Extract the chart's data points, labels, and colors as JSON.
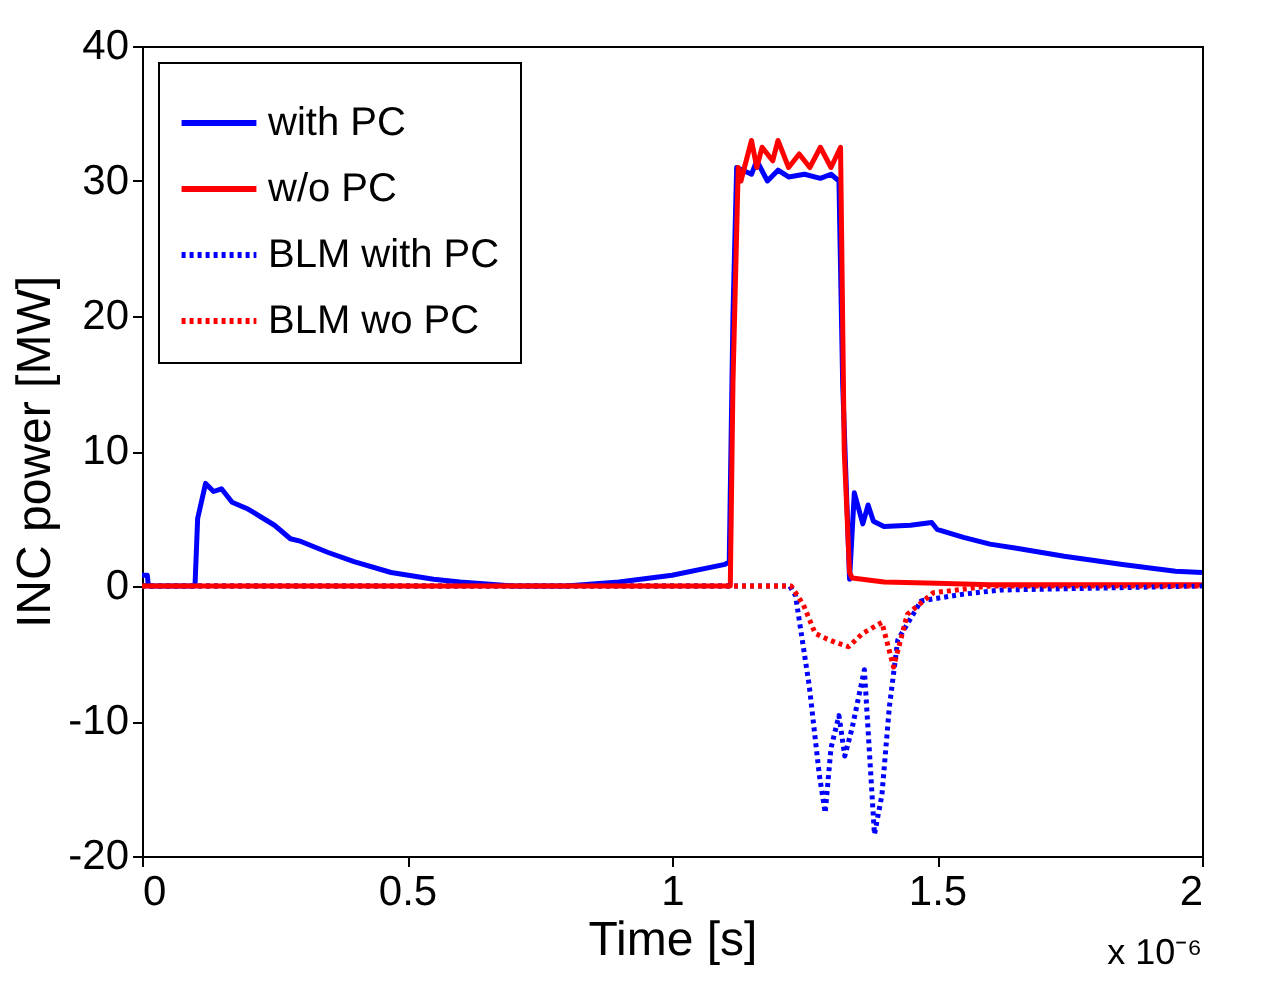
{
  "chart_data": {
    "type": "line",
    "xlabel": "Time [s]",
    "ylabel": "INC power [MW]",
    "xlim": [
      0,
      2
    ],
    "xticks": [
      0,
      0.5,
      1,
      1.5,
      2
    ],
    "ylim": [
      -20,
      40
    ],
    "yticks": [
      -20,
      -10,
      0,
      10,
      20,
      30,
      40
    ],
    "grid": false,
    "legend": "top left",
    "marker": "none",
    "annotations": [
      "x 10⁻⁶"
    ],
    "series": [
      {
        "name": "with PC",
        "color": "#0000ff",
        "line_style": "solid",
        "x": [
          0,
          0.01,
          0.012,
          0.1,
          0.105,
          0.12,
          0.135,
          0.15,
          0.17,
          0.2,
          0.25,
          0.28,
          0.3,
          0.35,
          0.4,
          0.47,
          0.55,
          0.6,
          0.7,
          0.8,
          0.9,
          1.0,
          1.1,
          1.108,
          1.115,
          1.122,
          1.15,
          1.16,
          1.18,
          1.2,
          1.22,
          1.25,
          1.28,
          1.3,
          1.315,
          1.322,
          1.335,
          1.344,
          1.36,
          1.37,
          1.38,
          1.4,
          1.45,
          1.49,
          1.5,
          1.55,
          1.6,
          1.65,
          1.74,
          1.85,
          1.95,
          2.0
        ],
        "values": [
          0.8,
          0.8,
          0,
          0,
          5,
          7.6,
          7,
          7.2,
          6.2,
          5.7,
          4.5,
          3.5,
          3.3,
          2.5,
          1.8,
          1,
          0.5,
          0.3,
          0,
          0,
          0.3,
          0.8,
          1.6,
          1.8,
          20,
          31,
          30.5,
          31.5,
          30,
          30.8,
          30.3,
          30.5,
          30.2,
          30.5,
          30,
          15,
          0.5,
          6.9,
          4.6,
          6,
          4.8,
          4.4,
          4.5,
          4.7,
          4.2,
          3.6,
          3.1,
          2.8,
          2.2,
          1.6,
          1.1,
          1.0
        ]
      },
      {
        "name": "w/o PC",
        "color": "#ff0000",
        "line_style": "solid",
        "x": [
          0,
          0.5,
          1.0,
          1.11,
          1.115,
          1.125,
          1.13,
          1.15,
          1.16,
          1.17,
          1.19,
          1.2,
          1.22,
          1.24,
          1.26,
          1.28,
          1.3,
          1.318,
          1.325,
          1.335,
          1.34,
          1.4,
          1.5,
          1.6,
          2.0
        ],
        "values": [
          0,
          0,
          0,
          0,
          15,
          31,
          30,
          33,
          31,
          32.5,
          31.5,
          33,
          31,
          32,
          31,
          32.5,
          31,
          32.5,
          10,
          1,
          0.6,
          0.3,
          0.2,
          0.1,
          0.1
        ]
      },
      {
        "name": "BLM with PC",
        "color": "#0000ff",
        "line_style": "dotted",
        "x": [
          0,
          0.5,
          1.0,
          1.222,
          1.233,
          1.259,
          1.278,
          1.289,
          1.3,
          1.315,
          1.326,
          1.34,
          1.363,
          1.382,
          1.396,
          1.41,
          1.426,
          1.47,
          1.55,
          1.62,
          2.0
        ],
        "values": [
          0,
          0,
          0,
          0,
          -0.7,
          -7.4,
          -14,
          -16.8,
          -12,
          -9.6,
          -12.6,
          -10.5,
          -6.2,
          -18.4,
          -15.5,
          -9,
          -4,
          -1.1,
          -0.6,
          -0.3,
          0
        ]
      },
      {
        "name": "BLM wo PC",
        "color": "#ff0000",
        "line_style": "dotted",
        "x": [
          0,
          1.0,
          1.225,
          1.248,
          1.27,
          1.285,
          1.31,
          1.333,
          1.36,
          1.396,
          1.418,
          1.444,
          1.493,
          1.6,
          2.0
        ],
        "values": [
          0,
          0,
          0,
          -1.4,
          -3.5,
          -3.8,
          -4.2,
          -4.5,
          -3.5,
          -2.7,
          -6,
          -2.1,
          -0.5,
          0,
          0
        ]
      }
    ]
  }
}
